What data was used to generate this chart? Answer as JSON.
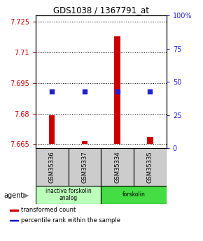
{
  "title": "GDS1038 / 1367791_at",
  "samples": [
    "GSM35336",
    "GSM35337",
    "GSM35334",
    "GSM35335"
  ],
  "red_values": [
    7.679,
    7.6665,
    7.718,
    7.6685
  ],
  "ylim_left": [
    7.663,
    7.728
  ],
  "ylim_right": [
    0,
    100
  ],
  "yticks_left": [
    7.665,
    7.68,
    7.695,
    7.71,
    7.725
  ],
  "yticks_right": [
    0,
    25,
    50,
    75,
    100
  ],
  "ytick_labels_left": [
    "7.665",
    "7.68",
    "7.695",
    "7.71",
    "7.725"
  ],
  "ytick_labels_right": [
    "0",
    "25",
    "50",
    "75",
    "100%"
  ],
  "bar_base": 7.665,
  "blue_percentile": 43,
  "agent_groups": [
    {
      "label": "inactive forskolin\nanalog",
      "color": "#bbffbb",
      "span": [
        0,
        2
      ]
    },
    {
      "label": "forskolin",
      "color": "#44dd44",
      "span": [
        2,
        4
      ]
    }
  ],
  "legend_items": [
    {
      "color": "#cc0000",
      "label": "transformed count"
    },
    {
      "color": "#0000cc",
      "label": "percentile rank within the sample"
    }
  ],
  "red_color": "#cc0000",
  "blue_color": "#2222cc",
  "bar_width": 0.18,
  "sample_box_color": "#cccccc",
  "grid_color": "#555555"
}
